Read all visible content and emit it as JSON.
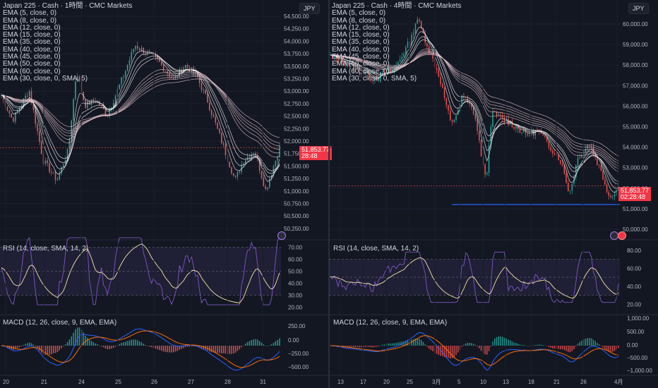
{
  "left": {
    "title": "Japan 225 · Cash · 1時間 · CMC Markets",
    "ema_lines": [
      "EMA (5, close, 0)",
      "EMA (8, close, 0)",
      "EMA (12, close, 0)",
      "EMA (15, close, 0)",
      "EMA (35, close, 0)",
      "EMA (40, close, 0)",
      "EMA (45, close, 0)",
      "EMA (50, close, 0)",
      "EMA (60, close, 0)",
      "EMA (30, close, 0, SMA, 5)"
    ],
    "currency": "JPY",
    "price_ticks": [
      "54,500.00",
      "54,250.00",
      "54,000.00",
      "53,750.00",
      "53,500.00",
      "53,250.00",
      "53,000.00",
      "52,750.00",
      "52,500.00",
      "52,250.00",
      "52,000.00",
      "51,750.00",
      "51,500.00",
      "51,250.00",
      "51,000.00",
      "50,750.00",
      "50,500.00",
      "50,250.00"
    ],
    "last_price": "51,853.77",
    "countdown": "28:48",
    "rsi_title": "RSI (14, close, SMA, 14, 2)",
    "rsi_ticks": [
      "70.00",
      "60.00",
      "50.00",
      "40.00",
      "30.00",
      "20.00"
    ],
    "macd_title": "MACD (12, 26, close, 9, EMA, EMA)",
    "macd_ticks": [
      "250.00",
      "0.00",
      "−250.00",
      "−500.00"
    ],
    "time_labels": [
      "20",
      "21",
      "24",
      "25",
      "26",
      "27",
      "28",
      "31"
    ]
  },
  "right": {
    "title": "Japan 225 · Cash · 4時間 · CMC Markets",
    "ema_lines": [
      "EMA (5, close, 0)",
      "EMA (8, close, 0)",
      "EMA (12, close, 0)",
      "EMA (15, close, 0)",
      "EMA (35, close, 0)",
      "EMA (40, close, 0)",
      "EMA (45, close, 0)",
      "EMA (50, close, 0)",
      "EMA (60, close, 0)",
      "EMA (30, close, 0, SMA, 5)"
    ],
    "currency": "JPY",
    "price_ticks": [
      "60,000.00",
      "59,000.00",
      "58,000.00",
      "57,000.00",
      "56,000.00",
      "55,000.00",
      "54,000.00",
      "53,000.00",
      "52,000.00",
      "51,000.00",
      "50,000.00"
    ],
    "last_price": "51,853.77",
    "countdown": "02:28:48",
    "rsi_title": "RSI (14, close, SMA, 14, 2)",
    "rsi_ticks": [
      "80.00",
      "60.00",
      "40.00",
      "20.00"
    ],
    "macd_title": "MACD (12, 26, close, 9, EMA, EMA)",
    "macd_ticks": [
      "1,000.00",
      "500.00",
      "0.00",
      "−500.00",
      "−1,000.00"
    ],
    "time_labels": [
      "13",
      "17",
      "20",
      "25",
      "3月",
      "5",
      "10",
      "13",
      "18",
      "21",
      "26",
      "4月"
    ]
  },
  "colors": {
    "background": "#131722",
    "up": "#26a69a",
    "down": "#ef5350",
    "ema": "#e8c8d0",
    "rsi": "#7e57c2",
    "rsi_ma": "#f5e6a8",
    "macd": "#2962ff",
    "signal": "#ff6d00",
    "support_line": "#2962ff",
    "badge": "#f23645"
  }
}
